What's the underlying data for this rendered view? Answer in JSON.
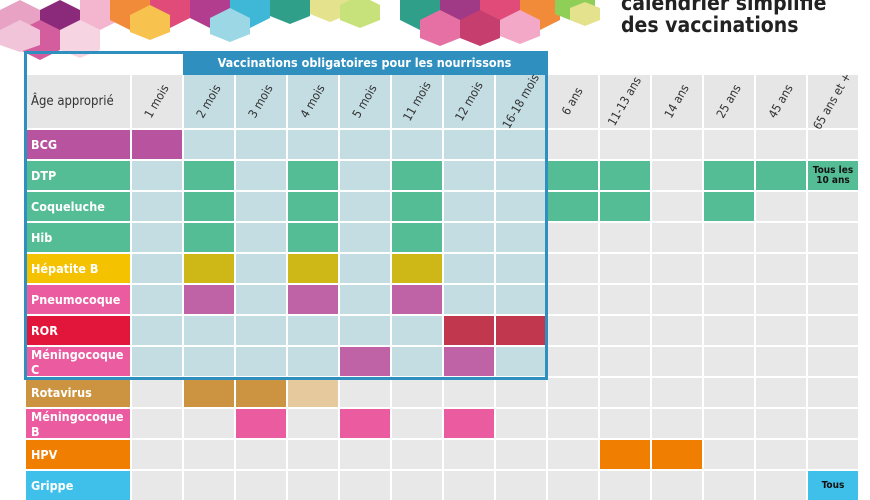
{
  "title": {
    "line1": "calendrier simplifié",
    "line2": "des vaccinations"
  },
  "band_label": "Vaccinations obligatoires pour les nourrissons",
  "age_header": "Âge approprié",
  "ages": [
    "1 mois",
    "2 mois",
    "3 mois",
    "4 mois",
    "5 mois",
    "11 mois",
    "12 mois",
    "16-18 mois",
    "6 ans",
    "11-13 ans",
    "14 ans",
    "25 ans",
    "45 ans",
    "65 ans et +"
  ],
  "colors": {
    "green": "#55bd96",
    "olive": "#cdb818",
    "purple": "#c062a6",
    "crimson": "#c0374e",
    "tan": "#cc9440",
    "tan_light": "#e6c99d",
    "pink": "#ea5b9f",
    "orange": "#f07e00",
    "light_blue_bg": "#c3dde3",
    "grey_bg": "#e8e8e8",
    "band": "#2f8fbf",
    "sky": "#3fc0ea"
  },
  "vaccines": [
    {
      "name": "BCG",
      "color": "#b8539f",
      "cells": [
        {
          "col": 0,
          "fill": "#b8539f"
        }
      ]
    },
    {
      "name": "DTP",
      "color": "#55bd96",
      "cells": [
        {
          "col": 1,
          "fill": "#55bd96"
        },
        {
          "col": 3,
          "fill": "#55bd96"
        },
        {
          "col": 5,
          "fill": "#55bd96"
        },
        {
          "col": 8,
          "fill": "#55bd96"
        },
        {
          "col": 9,
          "fill": "#55bd96"
        },
        {
          "col": 11,
          "fill": "#55bd96"
        },
        {
          "col": 12,
          "fill": "#55bd96"
        },
        {
          "col": 13,
          "fill": "#55bd96",
          "note": "Tous les 10 ans"
        }
      ]
    },
    {
      "name": "Coqueluche",
      "color": "#55bd96",
      "cells": [
        {
          "col": 1,
          "fill": "#55bd96"
        },
        {
          "col": 3,
          "fill": "#55bd96"
        },
        {
          "col": 5,
          "fill": "#55bd96"
        },
        {
          "col": 8,
          "fill": "#55bd96"
        },
        {
          "col": 9,
          "fill": "#55bd96"
        },
        {
          "col": 11,
          "fill": "#55bd96"
        }
      ]
    },
    {
      "name": "Hib",
      "color": "#55bd96",
      "cells": [
        {
          "col": 1,
          "fill": "#55bd96"
        },
        {
          "col": 3,
          "fill": "#55bd96"
        },
        {
          "col": 5,
          "fill": "#55bd96"
        }
      ]
    },
    {
      "name": "Hépatite B",
      "color": "#f5c200",
      "cells": [
        {
          "col": 1,
          "fill": "#cdb818"
        },
        {
          "col": 3,
          "fill": "#cdb818"
        },
        {
          "col": 5,
          "fill": "#cdb818"
        }
      ]
    },
    {
      "name": "Pneumocoque",
      "color": "#ea5b9f",
      "cells": [
        {
          "col": 1,
          "fill": "#c062a6"
        },
        {
          "col": 3,
          "fill": "#c062a6"
        },
        {
          "col": 5,
          "fill": "#c062a6"
        }
      ]
    },
    {
      "name": "ROR",
      "color": "#e2163b",
      "cells": [
        {
          "col": 6,
          "fill": "#c0374e"
        },
        {
          "col": 7,
          "fill": "#c0374e"
        }
      ]
    },
    {
      "name": "Méningocoque C",
      "color": "#ea5b9f",
      "cells": [
        {
          "col": 4,
          "fill": "#c062a6"
        },
        {
          "col": 6,
          "fill": "#c062a6"
        }
      ]
    },
    {
      "name": "Rotavirus",
      "color": "#cc9440",
      "cells": [
        {
          "col": 1,
          "fill": "#cc9440"
        },
        {
          "col": 2,
          "fill": "#cc9440"
        },
        {
          "col": 3,
          "fill": "#e6c99d"
        }
      ]
    },
    {
      "name": "Méningocoque B",
      "color": "#ea5b9f",
      "cells": [
        {
          "col": 2,
          "fill": "#ea5b9f"
        },
        {
          "col": 4,
          "fill": "#ea5b9f"
        },
        {
          "col": 6,
          "fill": "#ea5b9f"
        }
      ]
    },
    {
      "name": "HPV",
      "color": "#f07e00",
      "cells": [
        {
          "col": 9,
          "fill": "#f07e00"
        },
        {
          "col": 10,
          "fill": "#f07e00"
        }
      ]
    },
    {
      "name": "Grippe",
      "color": "#3fc0ea",
      "cells": [
        {
          "col": 13,
          "fill": "#3fc0ea",
          "note": "Tous"
        }
      ]
    }
  ]
}
